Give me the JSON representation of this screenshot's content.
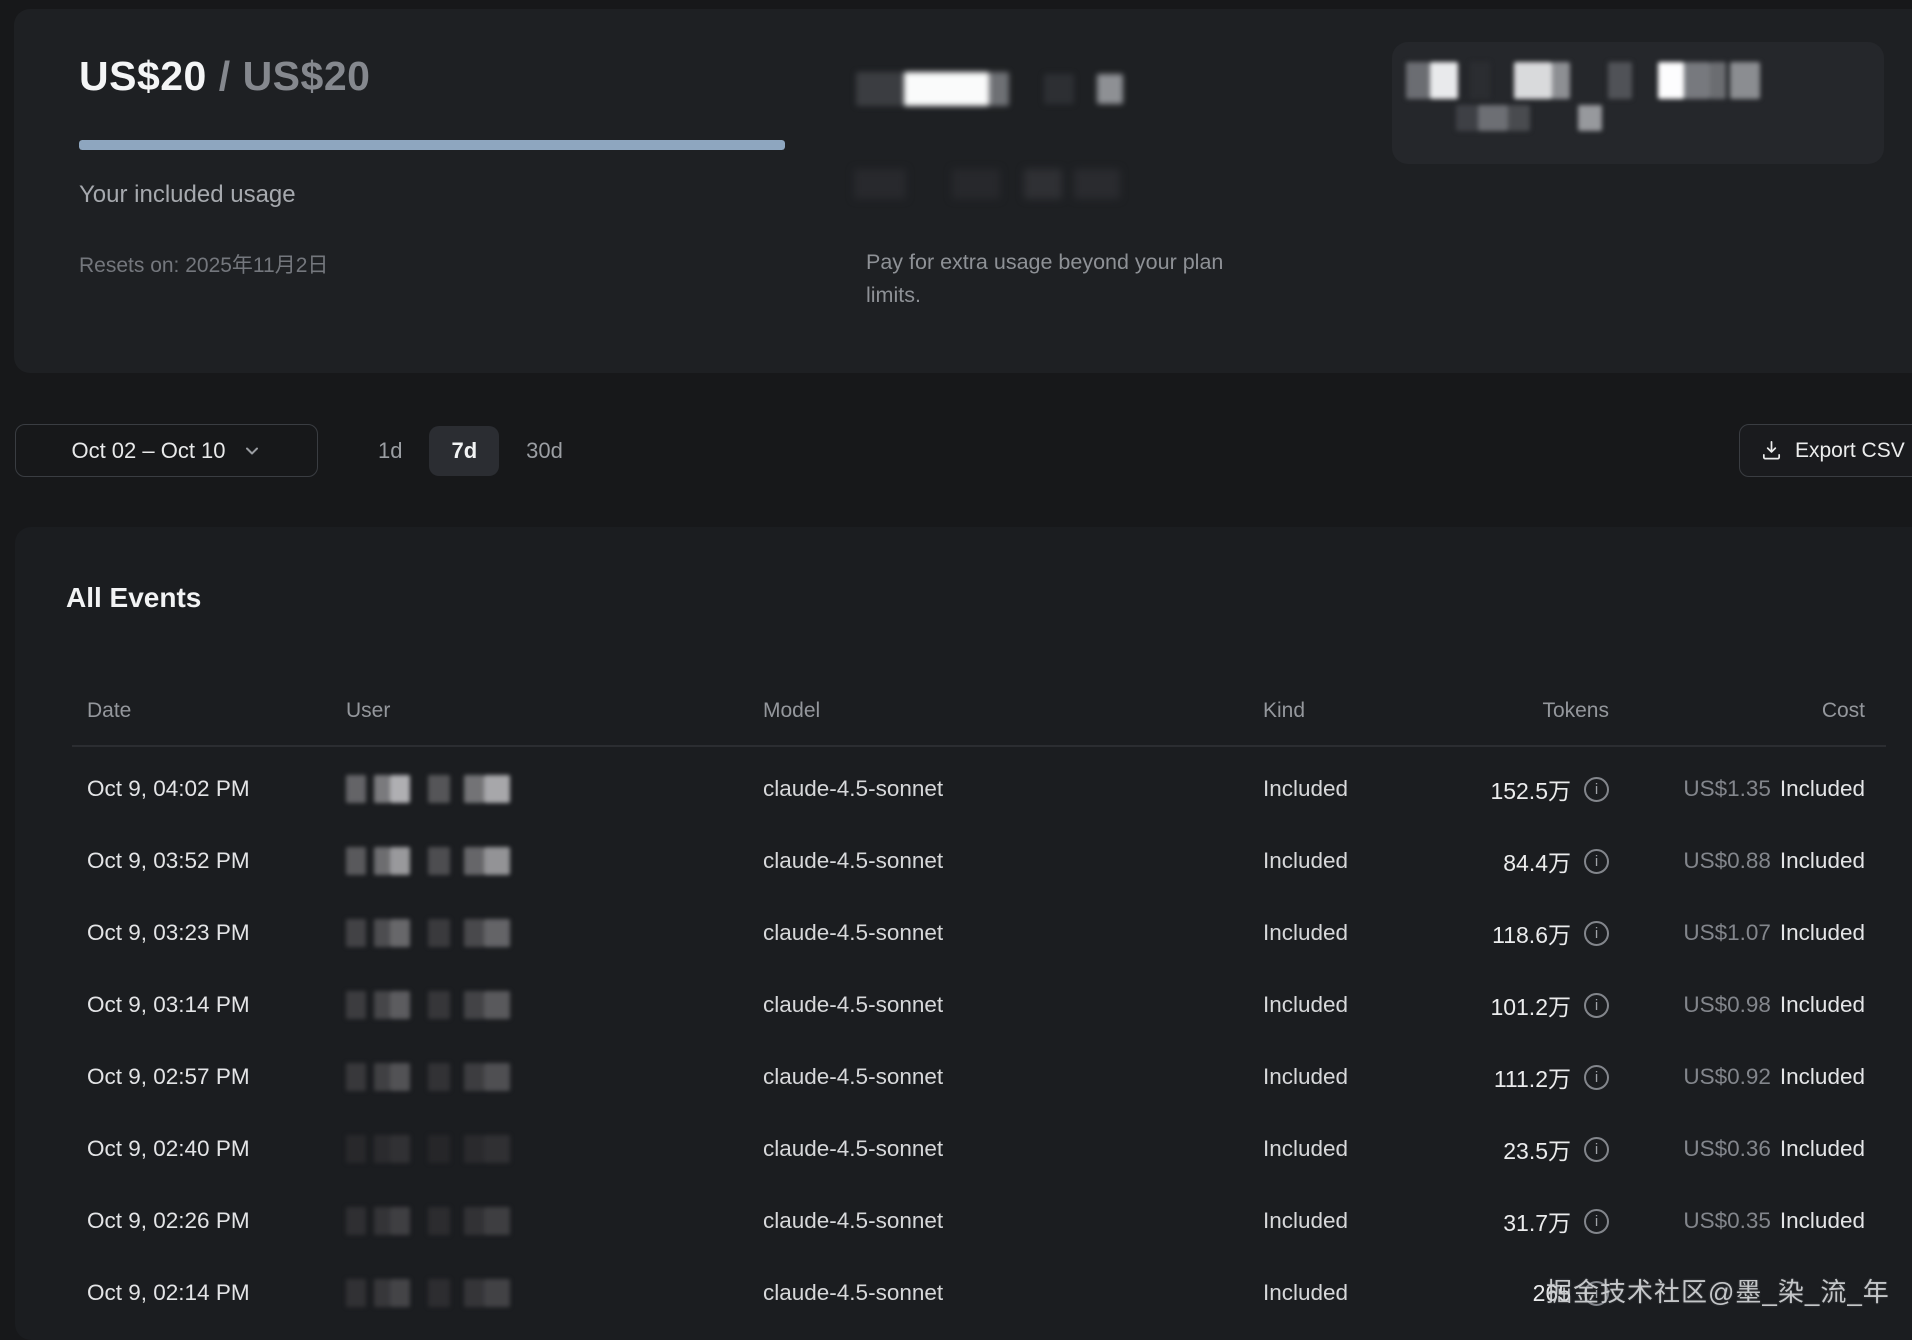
{
  "usage_card": {
    "used": "US$20",
    "separator": "/",
    "limit": "US$20",
    "subtitle": "Your included usage",
    "resets": "Resets on: 2025年11月2日",
    "progress_pct": 100,
    "progress_color": "#8ea6bf"
  },
  "extra_usage": {
    "description_line1": "Pay for extra usage beyond your plan",
    "description_line2": "limits."
  },
  "controls": {
    "date_range": "Oct 02 – Oct 10",
    "ranges": [
      {
        "label": "1d",
        "selected": false
      },
      {
        "label": "7d",
        "selected": true
      },
      {
        "label": "30d",
        "selected": false
      }
    ],
    "export_label": "Export CSV"
  },
  "events": {
    "title": "All Events",
    "columns": [
      "Date",
      "User",
      "Model",
      "Kind",
      "Tokens",
      "Cost"
    ],
    "rows": [
      {
        "date": "Oct 9, 04:02 PM",
        "model": "claude-4.5-sonnet",
        "kind": "Included",
        "tokens": "152.5万",
        "cost": "US$1.35",
        "cost_kind": "Included",
        "user_redaction_level": 1.0
      },
      {
        "date": "Oct 9, 03:52 PM",
        "model": "claude-4.5-sonnet",
        "kind": "Included",
        "tokens": "84.4万",
        "cost": "US$0.88",
        "cost_kind": "Included",
        "user_redaction_level": 0.85
      },
      {
        "date": "Oct 9, 03:23 PM",
        "model": "claude-4.5-sonnet",
        "kind": "Included",
        "tokens": "118.6万",
        "cost": "US$1.07",
        "cost_kind": "Included",
        "user_redaction_level": 0.5
      },
      {
        "date": "Oct 9, 03:14 PM",
        "model": "claude-4.5-sonnet",
        "kind": "Included",
        "tokens": "101.2万",
        "cost": "US$0.98",
        "cost_kind": "Included",
        "user_redaction_level": 0.42
      },
      {
        "date": "Oct 9, 02:57 PM",
        "model": "claude-4.5-sonnet",
        "kind": "Included",
        "tokens": "111.2万",
        "cost": "US$0.92",
        "cost_kind": "Included",
        "user_redaction_level": 0.35
      },
      {
        "date": "Oct 9, 02:40 PM",
        "model": "claude-4.5-sonnet",
        "kind": "Included",
        "tokens": "23.5万",
        "cost": "US$0.36",
        "cost_kind": "Included",
        "user_redaction_level": 0.12
      },
      {
        "date": "Oct 9, 02:26 PM",
        "model": "claude-4.5-sonnet",
        "kind": "Included",
        "tokens": "31.7万",
        "cost": "US$0.35",
        "cost_kind": "Included",
        "user_redaction_level": 0.22
      },
      {
        "date": "Oct 9, 02:14 PM",
        "model": "claude-4.5-sonnet",
        "kind": "Included",
        "tokens": "265",
        "cost": "",
        "cost_kind": "",
        "user_redaction_level": 0.25
      }
    ]
  },
  "watermark": "掘金技术社区@墨_染_流_年"
}
